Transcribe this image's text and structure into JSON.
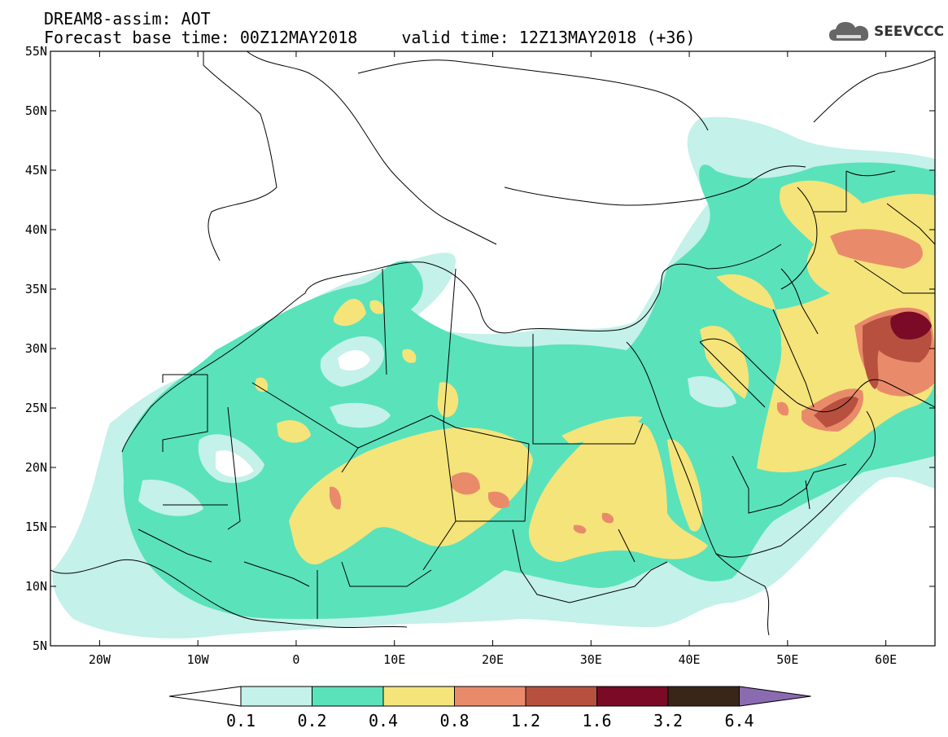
{
  "header": {
    "title_line1": "DREAM8-assim: AOT",
    "forecast_base": "Forecast base time: 00Z12MAY2018",
    "valid_time": "valid time: 12Z13MAY2018 (+36)"
  },
  "logo": {
    "text": "SEEVCCC",
    "icon": "cloud-logo-icon"
  },
  "map": {
    "variable": "AOT",
    "lon_range": [
      -25,
      65
    ],
    "lat_range": [
      5,
      55
    ],
    "lat_ticks": [
      "5N",
      "10N",
      "15N",
      "20N",
      "25N",
      "30N",
      "35N",
      "40N",
      "45N",
      "50N",
      "55N"
    ],
    "lon_ticks": [
      "20W",
      "10W",
      "0",
      "10E",
      "20E",
      "30E",
      "40E",
      "50E",
      "60E"
    ]
  },
  "colorbar": {
    "levels": [
      "0.1",
      "0.2",
      "0.4",
      "0.8",
      "1.2",
      "1.6",
      "3.2",
      "6.4"
    ],
    "colors": [
      "#ffffff",
      "#c4f1e9",
      "#5ae2bb",
      "#f5e47a",
      "#e98b6a",
      "#b8503f",
      "#7a0a26",
      "#3a2618",
      "#8b6bb0"
    ]
  }
}
